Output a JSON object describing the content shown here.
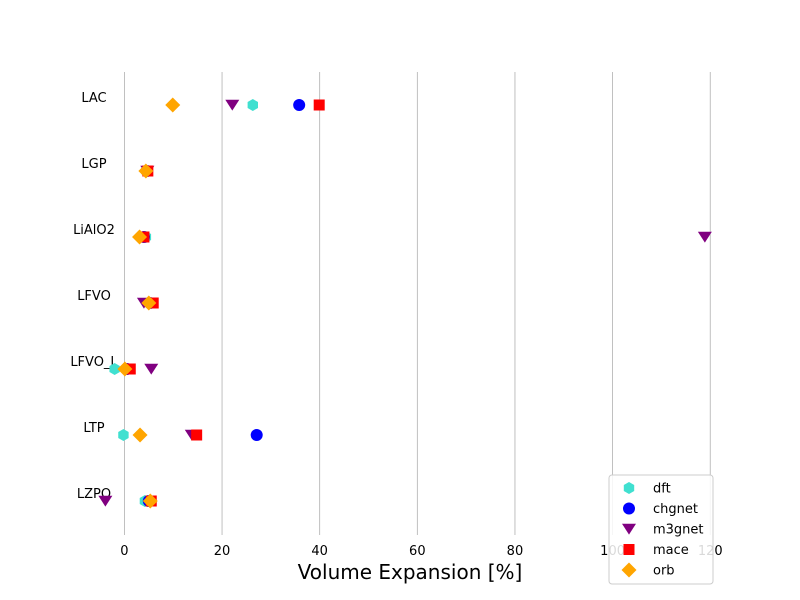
{
  "chart_data": {
    "type": "scatter",
    "orientation": "horizontal-categories",
    "xlabel": "Volume Expansion [%]",
    "ylabel": "",
    "title": "",
    "xlim": [
      -5,
      122
    ],
    "xticks": [
      0,
      20,
      40,
      60,
      80,
      100,
      120
    ],
    "grid": "vertical",
    "legend_position": "bottom-right",
    "categories": [
      "LAC",
      "LGP",
      "LiAlO2",
      "LFVO",
      "LFVO_L",
      "LTP",
      "LZPO"
    ],
    "series": [
      {
        "name": "dft",
        "marker": "hexagon",
        "color": "#40e0d0",
        "values": [
          26.3,
          4.5,
          4.4,
          5.3,
          -2.0,
          -0.2,
          4.2
        ]
      },
      {
        "name": "chgnet",
        "marker": "circle",
        "color": "#0000ff",
        "values": [
          35.8,
          4.6,
          4.0,
          5.2,
          0.5,
          27.1,
          5.0
        ]
      },
      {
        "name": "m3gnet",
        "marker": "triangle-down",
        "color": "#800080",
        "values": [
          22.1,
          4.7,
          118.9,
          4.0,
          5.5,
          13.8,
          -3.9
        ]
      },
      {
        "name": "mace",
        "marker": "square",
        "color": "#ff0000",
        "values": [
          39.9,
          4.8,
          4.0,
          5.9,
          1.2,
          14.8,
          5.5
        ]
      },
      {
        "name": "orb",
        "marker": "diamond",
        "color": "#ffa500",
        "values": [
          9.9,
          4.4,
          3.1,
          5.0,
          0.1,
          3.2,
          5.3
        ]
      }
    ]
  }
}
